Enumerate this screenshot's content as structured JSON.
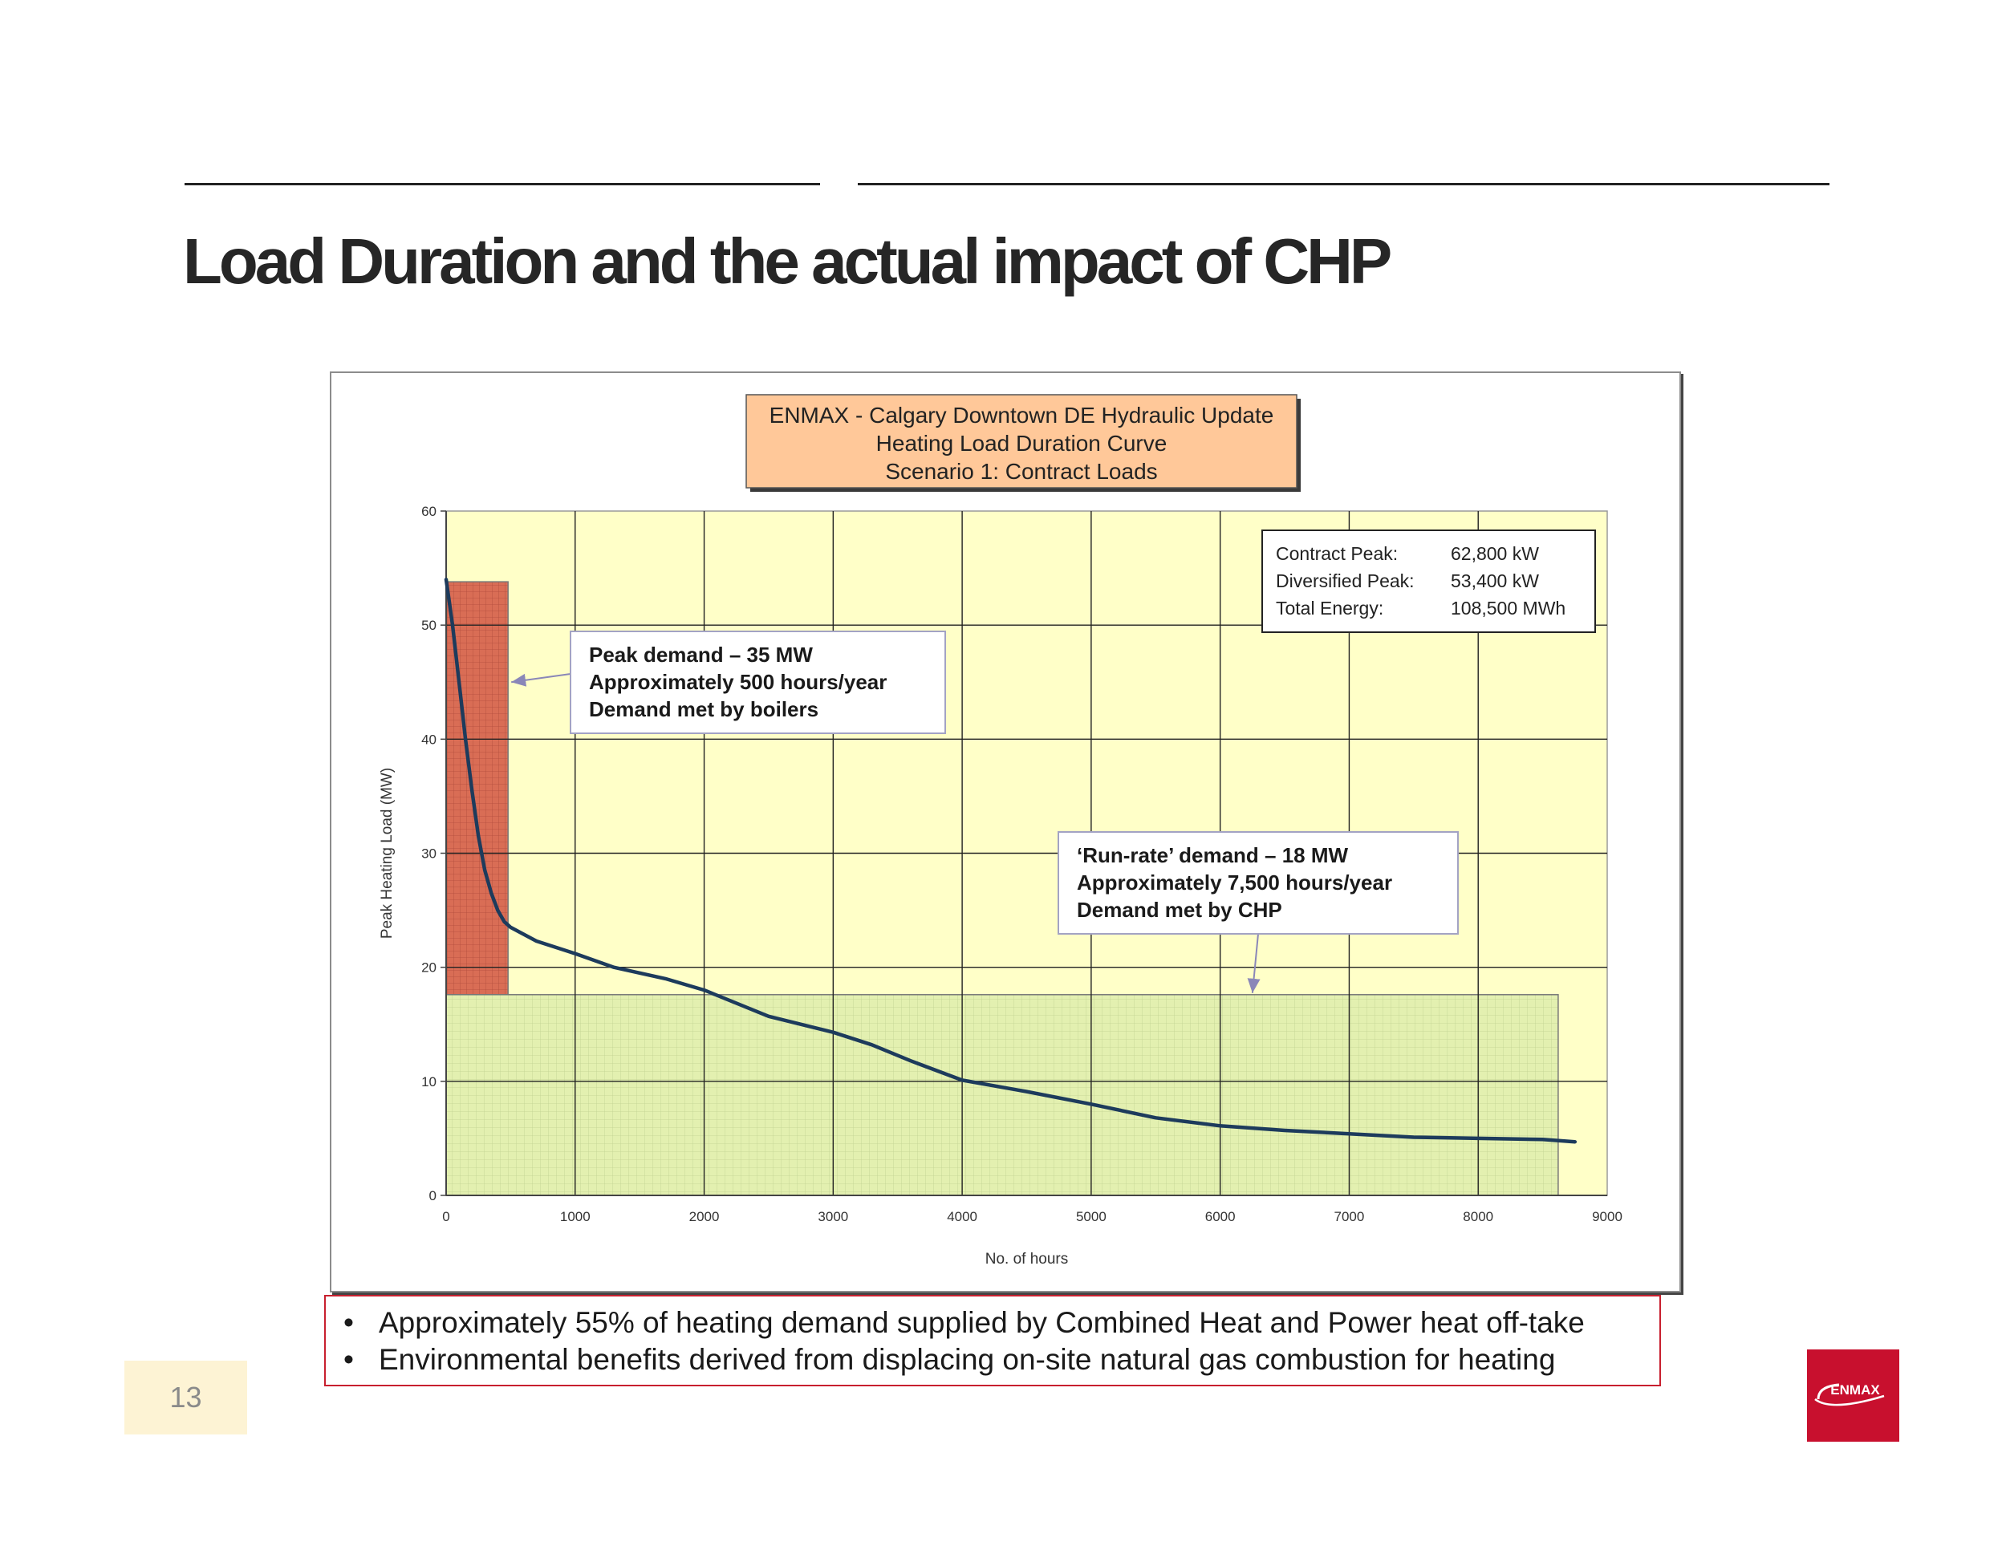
{
  "slide": {
    "title": "Load Duration and the actual impact of CHP",
    "page_number": "13",
    "bullets": [
      "Approximately 55% of heating demand supplied by Combined Heat and Power heat off-take",
      "Environmental benefits derived from displacing on-site natural gas combustion for heating"
    ],
    "bullet_symbol": "•",
    "logo_text": "ENMAX"
  },
  "colors": {
    "plot_bg": "#ffffc8",
    "curve": "#1d3b5c",
    "boiler_fill": "#d96d55",
    "chp_fill": "#e3f0b0",
    "title_box_fill": "#ffc899",
    "caption_border": "#c8202f",
    "logo_red": "#c8102e"
  },
  "chart_data": {
    "type": "line",
    "title_lines": [
      "ENMAX - Calgary Downtown DE Hydraulic Update",
      "Heating Load Duration Curve",
      "Scenario 1: Contract Loads"
    ],
    "xlabel": "No. of hours",
    "ylabel": "Peak Heating Load (MW)",
    "xlim": [
      0,
      9000
    ],
    "ylim": [
      0,
      60
    ],
    "xticks": [
      0,
      1000,
      2000,
      3000,
      4000,
      5000,
      6000,
      7000,
      8000,
      9000
    ],
    "yticks": [
      0,
      10,
      20,
      30,
      40,
      50,
      60
    ],
    "grid": true,
    "series": [
      {
        "x": [
          0,
          50,
          100,
          150,
          200,
          250,
          300,
          350,
          400,
          450,
          500,
          700,
          1000,
          1300,
          1700,
          2000,
          2500,
          3000,
          3300,
          3600,
          4000,
          4500,
          5000,
          5500,
          6000,
          6500,
          7000,
          7500,
          8000,
          8500,
          8750
        ],
        "y": [
          54,
          50,
          45,
          40,
          35.5,
          31.5,
          28.5,
          26.5,
          25,
          24,
          23.5,
          22.3,
          21.2,
          20,
          19,
          18,
          15.7,
          14.3,
          13.2,
          11.8,
          10.1,
          9.1,
          8,
          6.8,
          6.1,
          5.7,
          5.4,
          5.1,
          5,
          4.9,
          4.7
        ]
      }
    ],
    "regions": [
      {
        "kind": "boilers",
        "x_range": [
          0,
          480
        ],
        "y_range": [
          17.6,
          53.8
        ]
      },
      {
        "kind": "chp",
        "x_range": [
          0,
          8620
        ],
        "y_range": [
          0,
          17.6
        ]
      }
    ],
    "info_box": [
      {
        "label": "Contract Peak:",
        "value": "62,800 kW"
      },
      {
        "label": "Diversified Peak:",
        "value": "53,400 kW"
      },
      {
        "label": "Total Energy:",
        "value": "108,500 MWh"
      }
    ],
    "annotations": [
      {
        "lines": [
          "Peak demand – 35 MW",
          "Approximately 500 hours/year",
          "Demand met by boilers"
        ],
        "arrow_to": {
          "x": 480,
          "y": 45
        }
      },
      {
        "lines": [
          "‘Run-rate’ demand – 18 MW",
          "Approximately  7,500 hours/year",
          "Demand met by CHP"
        ],
        "arrow_to": {
          "x": 6250,
          "y": 17.6
        }
      }
    ]
  }
}
